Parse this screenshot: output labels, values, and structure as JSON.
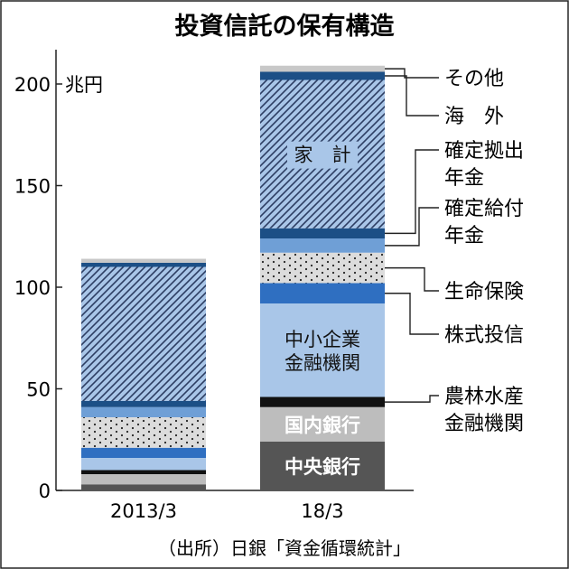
{
  "chart_data": {
    "type": "bar",
    "stacked": true,
    "title": "投資信託の保有構造",
    "unit": "兆円",
    "categories": [
      "2013/3",
      "18/3"
    ],
    "ylim": [
      0,
      210
    ],
    "yticks": [
      0,
      50,
      100,
      150,
      200
    ],
    "series": [
      {
        "name": "中央銀行",
        "color": "#555555",
        "pattern": "solid",
        "values": [
          3,
          24
        ]
      },
      {
        "name": "国内銀行",
        "color": "#bdbdbd",
        "pattern": "solid",
        "values": [
          5,
          17
        ]
      },
      {
        "name": "農林水産金融機関",
        "color": "#111111",
        "pattern": "solid",
        "values": [
          2,
          5
        ]
      },
      {
        "name": "中小企業金融機関",
        "color": "#a9c6e8",
        "pattern": "solid",
        "values": [
          6,
          46
        ]
      },
      {
        "name": "株式投信",
        "color": "#2f6fc1",
        "pattern": "solid",
        "values": [
          5,
          10
        ]
      },
      {
        "name": "生命保険",
        "color": "#dcdcdc",
        "pattern": "dots",
        "values": [
          15,
          15
        ]
      },
      {
        "name": "確定給付年金",
        "color": "#6f9fd6",
        "pattern": "solid",
        "values": [
          5,
          7
        ]
      },
      {
        "name": "確定拠出年金",
        "color": "#1c4f86",
        "pattern": "solid",
        "values": [
          3,
          5
        ]
      },
      {
        "name": "家計",
        "color": "#a9c6e8",
        "pattern": "hatch",
        "values": [
          66,
          73
        ]
      },
      {
        "name": "海外",
        "color": "#1c4f86",
        "pattern": "solid",
        "values": [
          2,
          4
        ]
      },
      {
        "name": "その他",
        "color": "#c8c8c8",
        "pattern": "solid",
        "values": [
          2,
          3
        ]
      }
    ],
    "in_bar_labels": {
      "中央銀行": "中央銀行",
      "国内銀行": "国内銀行",
      "中小企業金融機関": [
        "中小企業",
        "金融機関"
      ],
      "家計": "家　計"
    },
    "legend": [
      {
        "series": "その他",
        "lines": [
          "その他"
        ]
      },
      {
        "series": "海外",
        "lines": [
          "海　外"
        ]
      },
      {
        "series": "確定拠出年金",
        "lines": [
          "確定拠出",
          "年金"
        ]
      },
      {
        "series": "確定給付年金",
        "lines": [
          "確定給付",
          "年金"
        ]
      },
      {
        "series": "生命保険",
        "lines": [
          "生命保険"
        ]
      },
      {
        "series": "株式投信",
        "lines": [
          "株式投信"
        ]
      },
      {
        "series": "農林水産金融機関",
        "lines": [
          "農林水産",
          "金融機関"
        ]
      }
    ],
    "source": "（出所）日銀「資金循環統計」"
  }
}
